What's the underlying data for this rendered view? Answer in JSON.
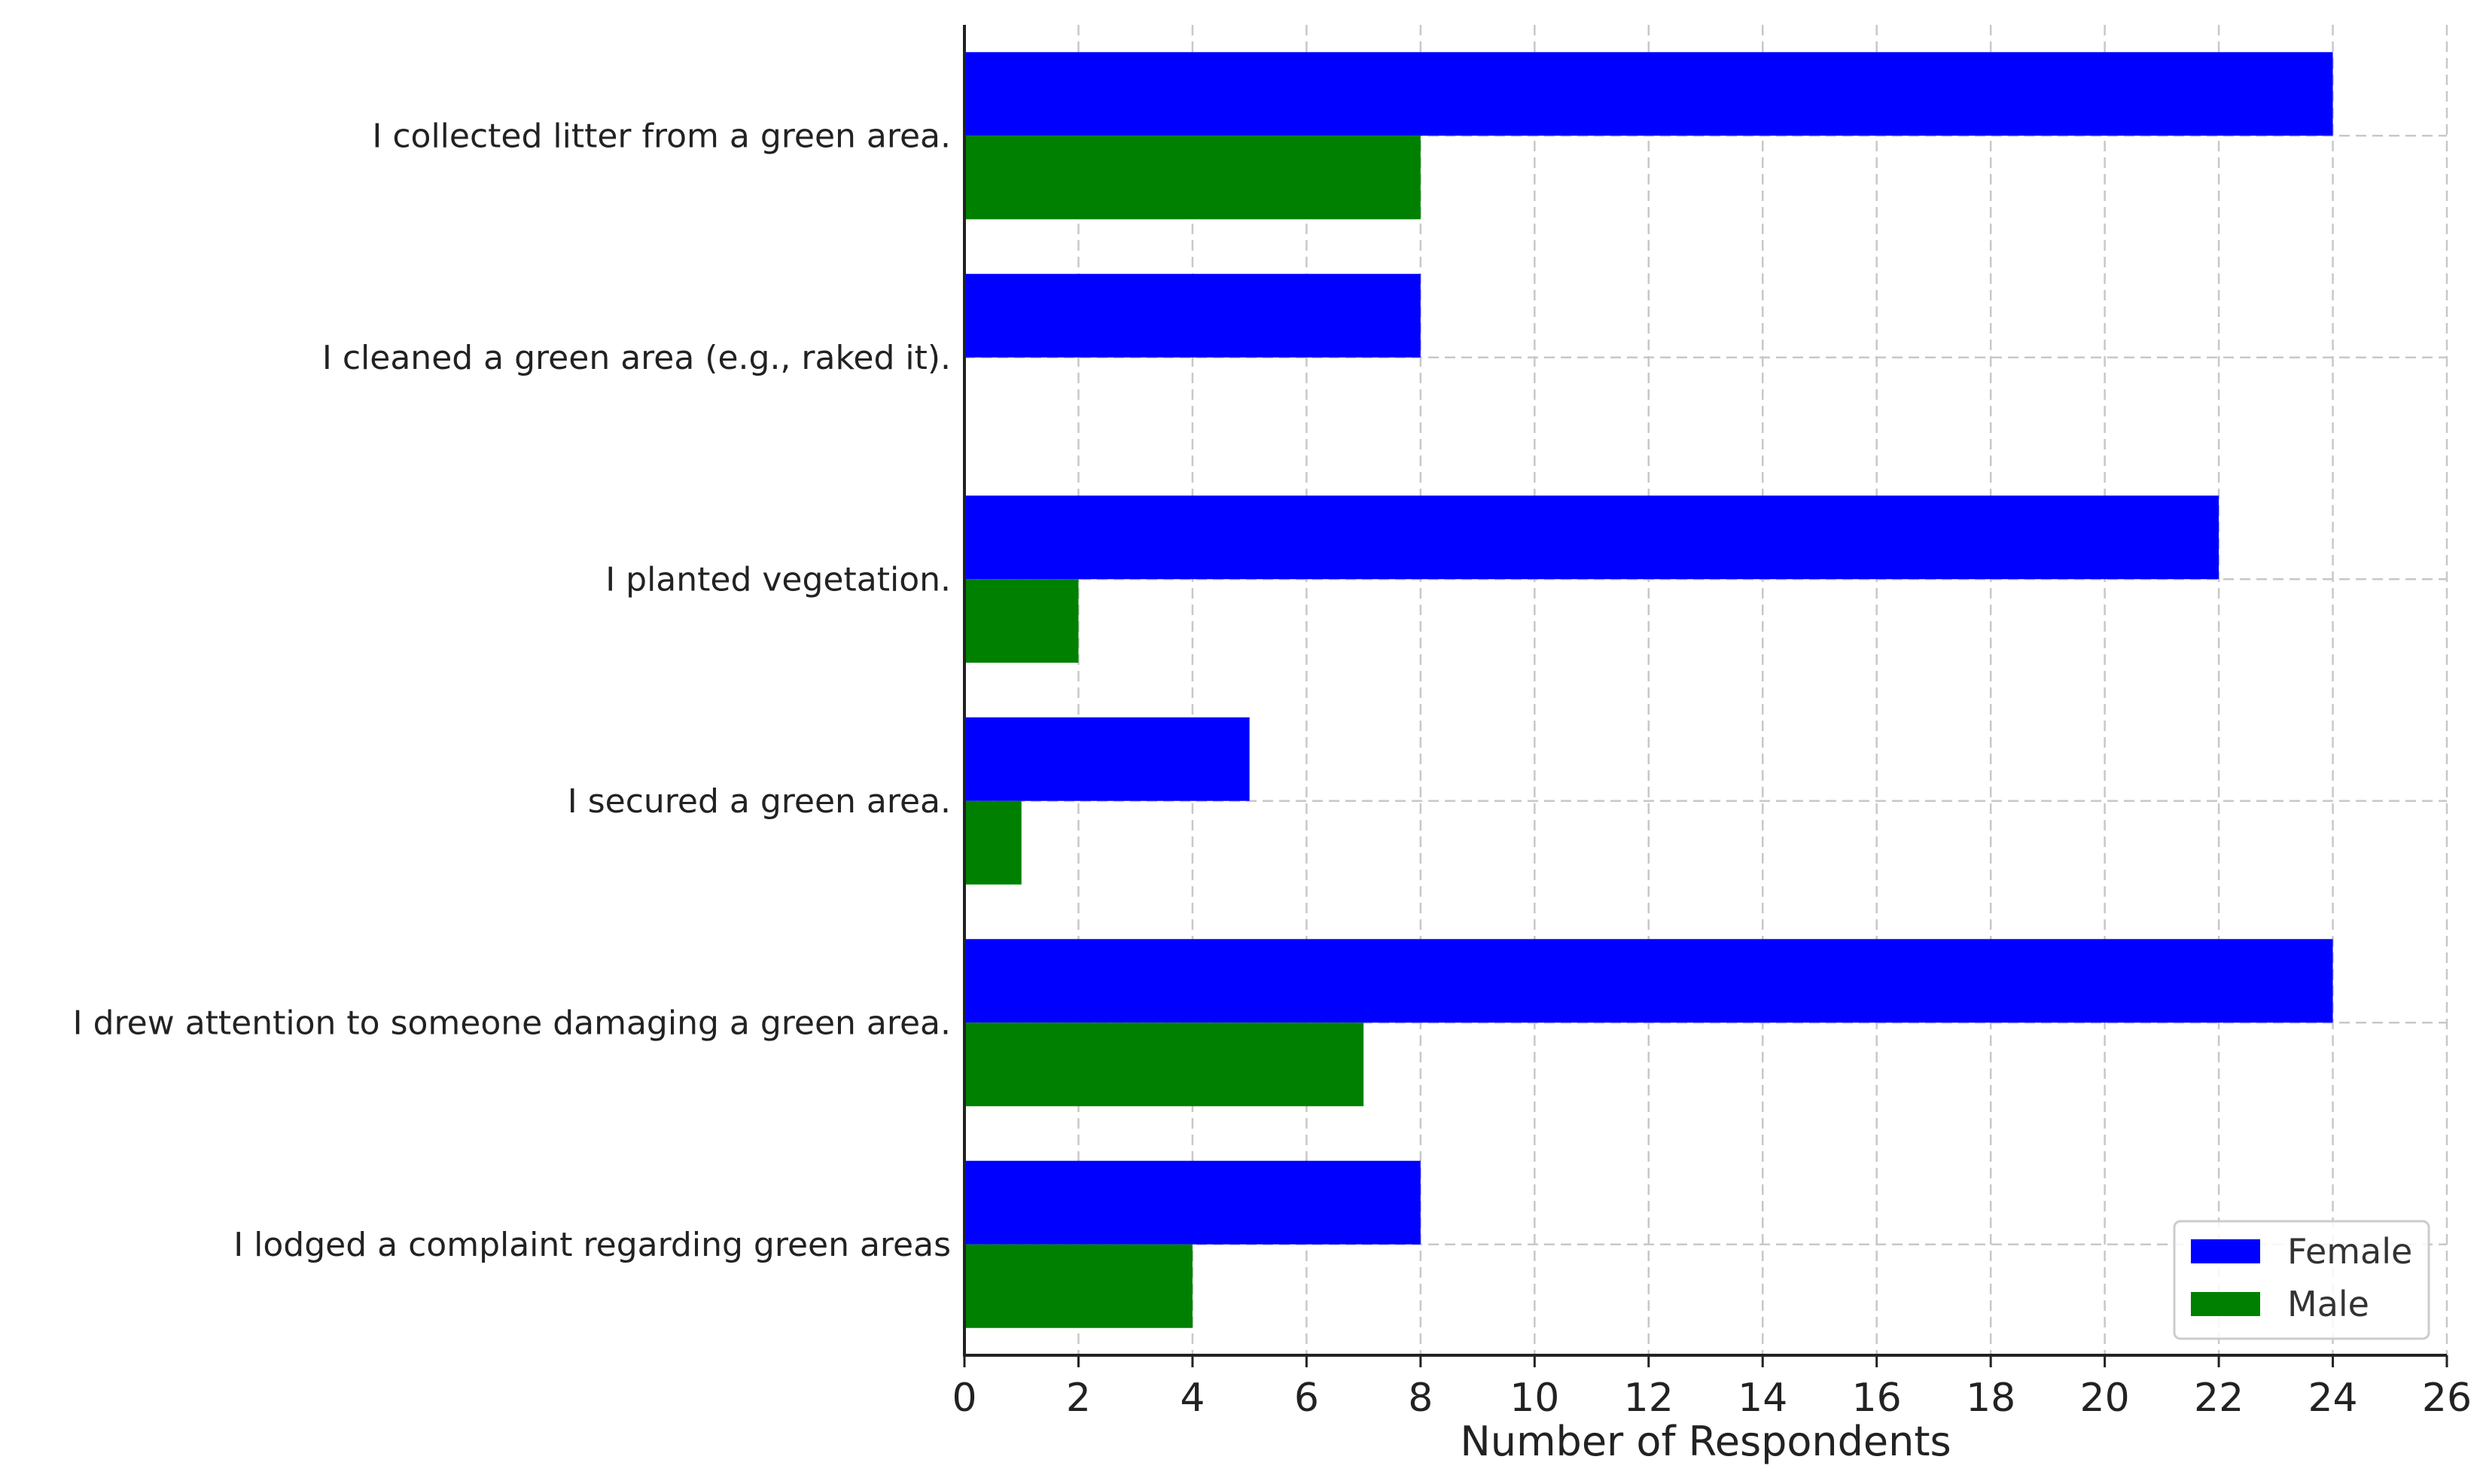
{
  "chart_data": {
    "type": "bar",
    "orientation": "horizontal",
    "title": "",
    "xlabel": "Number of Respondents",
    "ylabel": "",
    "xlim": [
      0,
      26
    ],
    "x_ticks": [
      0,
      2,
      4,
      6,
      8,
      10,
      12,
      14,
      16,
      18,
      20,
      22,
      24,
      26
    ],
    "grid": true,
    "legend_position": "bottom-right",
    "categories": [
      "I collected litter from a green area.",
      "I cleaned a green area (e.g., raked it).",
      "I planted vegetation.",
      "I secured a green area.",
      "I drew attention to someone damaging a green area.",
      "I lodged a complaint regarding green areas"
    ],
    "series": [
      {
        "name": "Female",
        "color": "#0000ff",
        "values": [
          24,
          8,
          22,
          5,
          24,
          8
        ]
      },
      {
        "name": "Male",
        "color": "#008000",
        "values": [
          8,
          0,
          2,
          1,
          7,
          4
        ]
      }
    ]
  }
}
